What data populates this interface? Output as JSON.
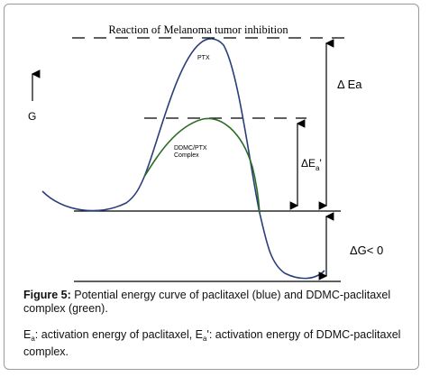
{
  "diagram": {
    "title": "Reaction of Melanoma tumor inhibition",
    "y_axis_label": "G",
    "label_ptx": "PTX",
    "label_complex_line1": "DDMC/PTX",
    "label_complex_line2": "Complex",
    "label_delta_ea": "Δ Ea",
    "label_delta_ea_prime_main": "ΔE",
    "label_delta_ea_prime_sub": "a",
    "label_delta_ea_prime_mark": "'",
    "label_delta_g": "ΔG< 0",
    "colors": {
      "ptx_curve": "#2a3f7a",
      "complex_curve": "#2e6b2a",
      "lines": "#000000"
    }
  },
  "caption": {
    "figure_label": "Figure 5:",
    "figure_text": " Potential energy curve of paclitaxel (blue) and DDMC-paclitaxel complex (green).",
    "note_e_main": "E",
    "note_e_sub": "a",
    "note_part1": ": activation energy of paclitaxel, E",
    "note_part2_sub": "a",
    "note_part3": "': activation energy of DDMC-paclitaxel complex."
  }
}
